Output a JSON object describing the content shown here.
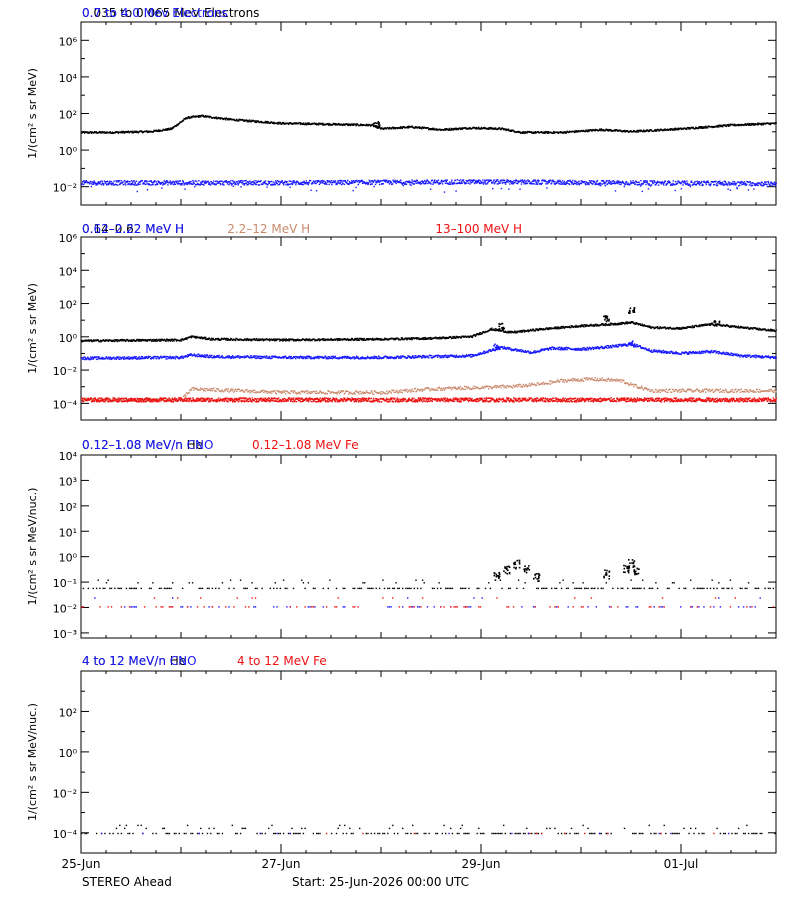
{
  "footer": {
    "spacecraft": "STEREO Ahead",
    "start": "Start: 25-Jun-2026 00:00 UTC"
  },
  "x_axis": {
    "ticks": [
      {
        "day": 0,
        "label": "25-Jun"
      },
      {
        "day": 2,
        "label": "27-Jun"
      },
      {
        "day": 4,
        "label": "29-Jun"
      },
      {
        "day": 6,
        "label": "01-Jul"
      }
    ],
    "range_days": [
      0,
      6.95
    ]
  },
  "colors": {
    "black": "#000000",
    "blue": "#1a1aff",
    "tan": "#c98a6c",
    "red": "#ee1111"
  },
  "chart_data": [
    {
      "type": "scatter",
      "ylog": true,
      "ylim_log10": [
        -3.0,
        7.0
      ],
      "ylabel": "1/(cm² s sr MeV)",
      "yticks": [
        {
          "exp": -2,
          "label": "10⁻²"
        },
        {
          "exp": 0,
          "label": "10⁰"
        },
        {
          "exp": 2,
          "label": "10²"
        },
        {
          "exp": 4,
          "label": "10⁴"
        },
        {
          "exp": 6,
          "label": "10⁶"
        }
      ],
      "series": [
        {
          "name": "0.035 to 0.065 MeV Electrons",
          "color": "black",
          "style": "dense",
          "scatter": 0.05,
          "points": [
            [
              0,
              1.0
            ],
            [
              0.3,
              1.0
            ],
            [
              0.7,
              1.05
            ],
            [
              0.9,
              1.2
            ],
            [
              1.05,
              1.8
            ],
            [
              1.2,
              1.9
            ],
            [
              1.5,
              1.7
            ],
            [
              2.0,
              1.5
            ],
            [
              2.5,
              1.45
            ],
            [
              2.9,
              1.4
            ],
            [
              3.0,
              1.2
            ],
            [
              3.3,
              1.3
            ],
            [
              3.6,
              1.15
            ],
            [
              3.9,
              1.25
            ],
            [
              4.2,
              1.2
            ],
            [
              4.4,
              1.0
            ],
            [
              4.8,
              1.0
            ],
            [
              5.2,
              1.15
            ],
            [
              5.5,
              1.05
            ],
            [
              6.0,
              1.2
            ],
            [
              6.5,
              1.4
            ],
            [
              6.95,
              1.5
            ]
          ],
          "spikes": [
            [
              2.95,
              1.6
            ]
          ]
        },
        {
          "name": "0.7 to 4.0 Mev Electrons",
          "color": "blue",
          "style": "noisy",
          "scatter": 0.12,
          "outliers": 0.5,
          "points": [
            [
              0,
              -1.75
            ],
            [
              2,
              -1.75
            ],
            [
              4,
              -1.7
            ],
            [
              5.5,
              -1.75
            ],
            [
              6.95,
              -1.8
            ]
          ]
        }
      ]
    },
    {
      "type": "scatter",
      "ylog": true,
      "ylim_log10": [
        -5.0,
        6.0
      ],
      "ylabel": "1/(cm² s sr MeV)",
      "yticks": [
        {
          "exp": -4,
          "label": "10⁻⁴"
        },
        {
          "exp": -2,
          "label": "10⁻²"
        },
        {
          "exp": 0,
          "label": "10⁰"
        },
        {
          "exp": 2,
          "label": "10²"
        },
        {
          "exp": 4,
          "label": "10⁴"
        },
        {
          "exp": 6,
          "label": "10⁶"
        }
      ],
      "series": [
        {
          "name": "0.14–0.62 MeV H",
          "color": "black",
          "style": "dense",
          "scatter": 0.06,
          "points": [
            [
              0,
              -0.2
            ],
            [
              1.0,
              -0.15
            ],
            [
              1.1,
              0.05
            ],
            [
              1.3,
              -0.1
            ],
            [
              2.0,
              -0.15
            ],
            [
              3.0,
              -0.1
            ],
            [
              3.5,
              -0.05
            ],
            [
              3.9,
              0.05
            ],
            [
              4.1,
              0.5
            ],
            [
              4.3,
              0.3
            ],
            [
              4.6,
              0.5
            ],
            [
              5.0,
              0.7
            ],
            [
              5.3,
              0.8
            ],
            [
              5.5,
              0.9
            ],
            [
              5.7,
              0.6
            ],
            [
              6.0,
              0.55
            ],
            [
              6.3,
              0.8
            ],
            [
              6.6,
              0.6
            ],
            [
              6.95,
              0.4
            ]
          ],
          "spikes": [
            [
              4.2,
              0.85
            ],
            [
              5.25,
              1.3
            ],
            [
              5.5,
              1.8
            ],
            [
              6.35,
              1.0
            ]
          ]
        },
        {
          "name": "0.62–2.22 MeV H",
          "color": "blue",
          "style": "dense",
          "scatter": 0.08,
          "points": [
            [
              0,
              -1.25
            ],
            [
              1.0,
              -1.2
            ],
            [
              1.1,
              -1.05
            ],
            [
              1.3,
              -1.15
            ],
            [
              2.0,
              -1.2
            ],
            [
              3.0,
              -1.2
            ],
            [
              3.9,
              -1.1
            ],
            [
              4.2,
              -0.6
            ],
            [
              4.5,
              -0.9
            ],
            [
              4.7,
              -0.65
            ],
            [
              5.0,
              -0.7
            ],
            [
              5.3,
              -0.55
            ],
            [
              5.5,
              -0.4
            ],
            [
              5.7,
              -0.8
            ],
            [
              6.0,
              -0.95
            ],
            [
              6.3,
              -0.85
            ],
            [
              6.6,
              -1.1
            ],
            [
              6.95,
              -1.2
            ]
          ],
          "spikes": [
            [
              4.15,
              -0.4
            ],
            [
              5.5,
              -0.2
            ]
          ]
        },
        {
          "name": "2.2–12 MeV H",
          "color": "tan",
          "style": "sparse",
          "scatter": 0.1,
          "points": [
            [
              0,
              -3.75
            ],
            [
              1.0,
              -3.75
            ],
            [
              1.1,
              -3.1
            ],
            [
              2.0,
              -3.3
            ],
            [
              3.0,
              -3.3
            ],
            [
              3.5,
              -3.1
            ],
            [
              4.3,
              -2.95
            ],
            [
              4.6,
              -2.8
            ],
            [
              4.8,
              -2.6
            ],
            [
              5.1,
              -2.5
            ],
            [
              5.4,
              -2.6
            ],
            [
              5.5,
              -2.85
            ],
            [
              5.7,
              -3.2
            ],
            [
              6.5,
              -3.2
            ],
            [
              6.95,
              -3.2
            ]
          ]
        },
        {
          "name": "13–100 MeV H",
          "color": "red",
          "style": "band",
          "scatter": 0.12,
          "points": [
            [
              0,
              -3.75
            ],
            [
              6.95,
              -3.75
            ]
          ]
        }
      ]
    },
    {
      "type": "scatter",
      "ylog": true,
      "ylim_log10": [
        -3.2,
        4.0
      ],
      "ylabel": "1/(cm² s sr MeV/nuc.)",
      "yticks": [
        {
          "exp": -3,
          "label": "10⁻³"
        },
        {
          "exp": -2,
          "label": "10⁻²"
        },
        {
          "exp": -1,
          "label": "10⁻¹"
        },
        {
          "exp": 0,
          "label": "10⁰"
        },
        {
          "exp": 1,
          "label": "10¹"
        },
        {
          "exp": 2,
          "label": "10²"
        },
        {
          "exp": 3,
          "label": "10³"
        },
        {
          "exp": 4,
          "label": "10⁴"
        }
      ],
      "series": [
        {
          "name": "0.12–1.08 MeV/n He",
          "color": "black",
          "style": "quant",
          "levels": [
            -1.22,
            -1.0,
            -0.9
          ],
          "points": [
            [
              0,
              -1.22
            ],
            [
              6.95,
              -1.22
            ]
          ],
          "spikes": [
            [
              4.15,
              -0.55
            ],
            [
              4.25,
              -0.3
            ],
            [
              4.35,
              -0.1
            ],
            [
              4.45,
              -0.25
            ],
            [
              4.55,
              -0.6
            ],
            [
              5.25,
              -0.5
            ],
            [
              5.45,
              -0.3
            ],
            [
              5.5,
              -0.05
            ],
            [
              5.55,
              -0.35
            ]
          ]
        },
        {
          "name": "0.12–1.08 MeV/n CNO",
          "color": "blue",
          "style": "quant",
          "levels": [
            -1.95,
            -1.6
          ],
          "points": [
            [
              0,
              -1.95
            ],
            [
              6.95,
              -1.95
            ]
          ]
        },
        {
          "name": "0.12–1.08 MeV Fe",
          "color": "red",
          "style": "quant",
          "levels": [
            -1.95,
            -1.6
          ],
          "points": [
            [
              0,
              -1.95
            ],
            [
              6.95,
              -1.95
            ]
          ]
        }
      ]
    },
    {
      "type": "scatter",
      "ylog": true,
      "ylim_log10": [
        -5.0,
        4.0
      ],
      "ylabel": "1/(cm² s sr MeV/nuc.)",
      "yticks": [
        {
          "exp": -4,
          "label": "10⁻⁴"
        },
        {
          "exp": -2,
          "label": "10⁻²"
        },
        {
          "exp": 0,
          "label": "10⁰"
        },
        {
          "exp": 2,
          "label": "10²"
        }
      ],
      "series": [
        {
          "name": "4 to 12 MeV/n He",
          "color": "black",
          "style": "quant",
          "levels": [
            -4.0,
            -3.75,
            -3.6
          ],
          "points": [
            [
              0,
              -4.0
            ],
            [
              6.95,
              -4.0
            ]
          ]
        },
        {
          "name": "4 to 12 MeV/n CNO",
          "color": "blue",
          "style": "quant",
          "levels": [
            -4.0
          ],
          "points": [
            [
              0,
              -4.0
            ],
            [
              6.95,
              -4.0
            ]
          ]
        },
        {
          "name": "4 to 12 MeV Fe",
          "color": "red",
          "style": "quant",
          "levels": [
            -4.0
          ],
          "points": [
            [
              0,
              -4.0
            ],
            [
              6.95,
              -4.0
            ]
          ]
        }
      ]
    }
  ]
}
